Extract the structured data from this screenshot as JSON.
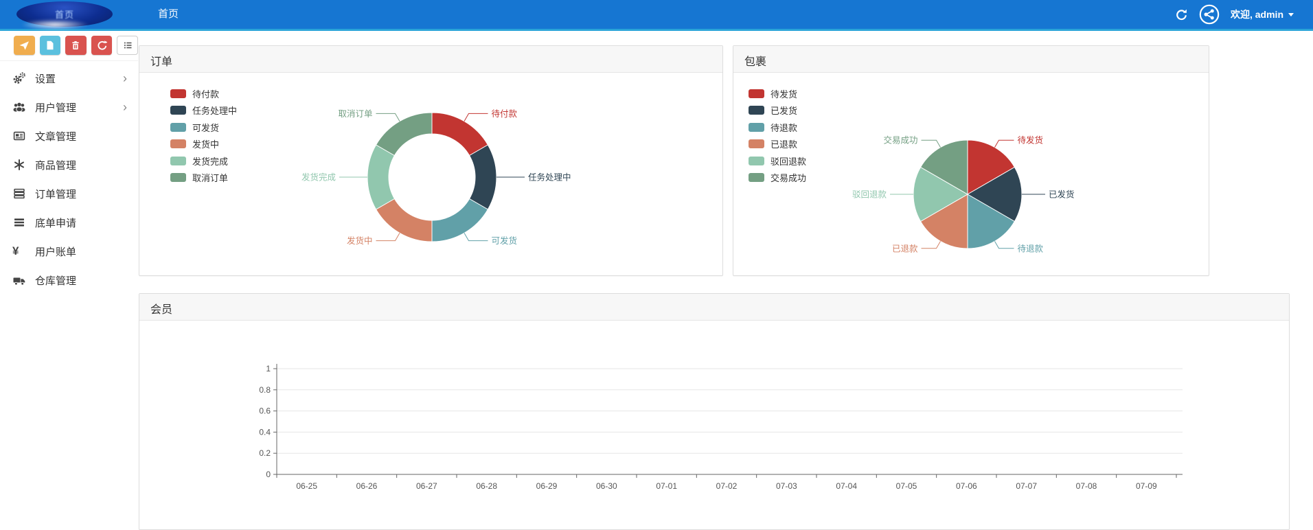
{
  "navbar": {
    "brand": "首页",
    "menu": [
      {
        "label": "首页",
        "active": true
      }
    ],
    "welcome": "欢迎, admin",
    "colors": {
      "background": "#1676d2",
      "accent_line": "#2aa4d8"
    }
  },
  "sidebar": {
    "toolbar": [
      {
        "name": "send",
        "color": "#f0ad4e"
      },
      {
        "name": "file",
        "color": "#5bc0de"
      },
      {
        "name": "trash",
        "color": "#d9534f"
      },
      {
        "name": "recycle",
        "color": "#d9534f"
      },
      {
        "name": "list",
        "color": "#ffffff"
      }
    ],
    "items": [
      {
        "label": "设置",
        "has_submenu": true
      },
      {
        "label": "用户管理",
        "has_submenu": true
      },
      {
        "label": "文章管理",
        "has_submenu": false
      },
      {
        "label": "商品管理",
        "has_submenu": false
      },
      {
        "label": "订单管理",
        "has_submenu": false
      },
      {
        "label": "底单申请",
        "has_submenu": false
      },
      {
        "label": "用户账单",
        "has_submenu": false
      },
      {
        "label": "仓库管理",
        "has_submenu": false
      }
    ]
  },
  "panels": {
    "orders": {
      "title": "订单"
    },
    "packages": {
      "title": "包裹"
    },
    "members": {
      "title": "会员"
    }
  },
  "chart_data": [
    {
      "id": "orders",
      "type": "pie",
      "subtype": "donut",
      "title": "订单",
      "labels": [
        "待付款",
        "任务处理中",
        "可发货",
        "发货中",
        "发货完成",
        "取消订单"
      ],
      "values": [
        1,
        1,
        1,
        1,
        1,
        1
      ],
      "colors": [
        "#c23531",
        "#2f4554",
        "#61a0a8",
        "#d48265",
        "#91c7ae",
        "#749f83"
      ],
      "legend_position": "top-left"
    },
    {
      "id": "packages",
      "type": "pie",
      "subtype": "pie",
      "title": "包裹",
      "labels": [
        "待发货",
        "已发货",
        "待退款",
        "已退款",
        "驳回退款",
        "交易成功"
      ],
      "values": [
        1,
        1,
        1,
        1,
        1,
        1
      ],
      "colors": [
        "#c23531",
        "#2f4554",
        "#61a0a8",
        "#d48265",
        "#91c7ae",
        "#749f83"
      ],
      "legend_position": "top-left"
    },
    {
      "id": "members",
      "type": "line",
      "title": "会员",
      "x": [
        "06-25",
        "06-26",
        "06-27",
        "06-28",
        "06-29",
        "06-30",
        "07-01",
        "07-02",
        "07-03",
        "07-04",
        "07-05",
        "07-06",
        "07-07",
        "07-08",
        "07-09"
      ],
      "series": [],
      "ylim": [
        0,
        1
      ],
      "yticks": [
        0,
        0.2,
        0.4,
        0.6,
        0.8,
        1
      ],
      "grid": true,
      "legend_position": "none"
    }
  ]
}
